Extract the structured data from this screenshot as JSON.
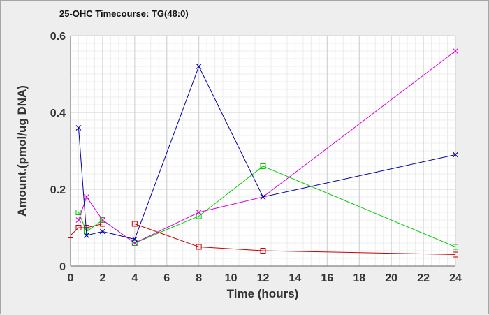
{
  "chart_data": {
    "type": "line",
    "title": "25-OHC Timecourse: TG(48:0)",
    "xlabel": "Time (hours)",
    "ylabel": "Amount.(pmol/ug DNA)",
    "xlim": [
      0,
      24
    ],
    "ylim": [
      0,
      0.6
    ],
    "x_ticks": [
      0,
      2,
      4,
      6,
      8,
      10,
      12,
      14,
      16,
      18,
      20,
      22,
      24
    ],
    "y_ticks": [
      0,
      0.2,
      0.4,
      0.6
    ],
    "y_tick_labels": [
      "0",
      "0.2",
      "0.4",
      "0.6"
    ],
    "grid": true,
    "legend": "none",
    "series": [
      {
        "color": "#cc0000",
        "marker": "square",
        "points": [
          [
            0,
            0.08
          ],
          [
            0.5,
            0.1
          ],
          [
            1,
            0.1
          ],
          [
            2,
            0.11
          ],
          [
            4,
            0.11
          ],
          [
            8,
            0.05
          ],
          [
            12,
            0.04
          ],
          [
            24,
            0.03
          ]
        ]
      },
      {
        "color": "#00cc00",
        "marker": "square",
        "points": [
          [
            0.5,
            0.14
          ],
          [
            1,
            0.09
          ],
          [
            2,
            0.12
          ],
          [
            4,
            0.06
          ],
          [
            8,
            0.13
          ],
          [
            12,
            0.26
          ],
          [
            24,
            0.05
          ]
        ]
      },
      {
        "color": "#dd00dd",
        "marker": "x",
        "points": [
          [
            0.5,
            0.12
          ],
          [
            1,
            0.18
          ],
          [
            2,
            0.12
          ],
          [
            4,
            0.06
          ],
          [
            8,
            0.14
          ],
          [
            12,
            0.18
          ],
          [
            24,
            0.56
          ]
        ]
      },
      {
        "color": "#0000aa",
        "marker": "x",
        "points": [
          [
            0.5,
            0.36
          ],
          [
            1,
            0.08
          ],
          [
            2,
            0.09
          ],
          [
            4,
            0.07
          ],
          [
            8,
            0.52
          ],
          [
            12,
            0.18
          ],
          [
            24,
            0.29
          ]
        ]
      }
    ]
  }
}
